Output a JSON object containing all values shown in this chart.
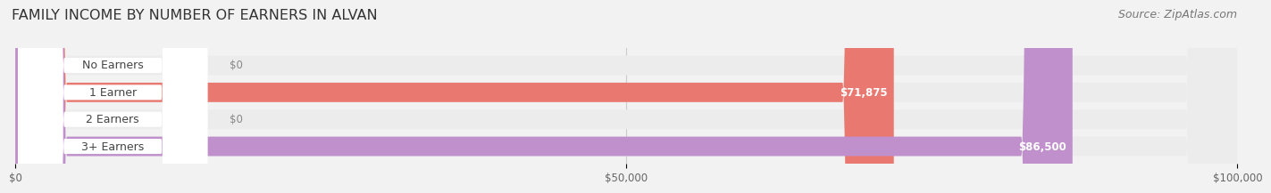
{
  "title": "FAMILY INCOME BY NUMBER OF EARNERS IN ALVAN",
  "source": "Source: ZipAtlas.com",
  "categories": [
    "No Earners",
    "1 Earner",
    "2 Earners",
    "3+ Earners"
  ],
  "values": [
    0,
    71875,
    0,
    86500
  ],
  "bar_colors": [
    "#f5c090",
    "#e87870",
    "#aabce8",
    "#c090cc"
  ],
  "label_text_colors": [
    "#555555",
    "#555555",
    "#555555",
    "#555555"
  ],
  "xlim_max": 100000,
  "xtick_values": [
    0,
    50000,
    100000
  ],
  "xtick_labels": [
    "$0",
    "$50,000",
    "$100,000"
  ],
  "value_labels": [
    "$0",
    "$71,875",
    "$0",
    "$86,500"
  ],
  "background_color": "#f2f2f2",
  "bar_bg_color": "#ebebeb",
  "title_fontsize": 11.5,
  "source_fontsize": 9,
  "label_fontsize": 9,
  "value_fontsize": 8.5,
  "nub_colors": [
    "#e8a060",
    "#cc5050",
    "#7090d0",
    "#9050a8"
  ]
}
